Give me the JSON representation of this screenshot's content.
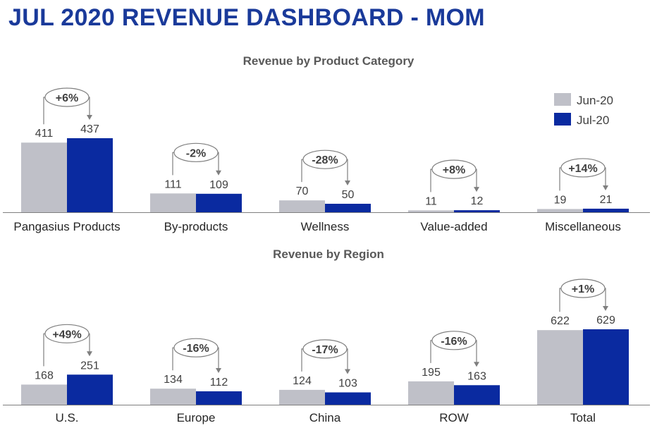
{
  "header": {
    "title": "JUL 2020 REVENUE DASHBOARD - MOM"
  },
  "legend": {
    "position": "top-right",
    "items": [
      {
        "label": "Jun-20",
        "color": "#bfc0c8"
      },
      {
        "label": "Jul-20",
        "color": "#0a2aa0"
      }
    ]
  },
  "colors": {
    "axis": "#7f7f7f",
    "bracket": "#7f7f7f"
  },
  "chart_data": [
    {
      "type": "bar",
      "title": "Revenue by Product Category",
      "categories": [
        "Pangasius Products",
        "By-products",
        "Wellness",
        "Value-added",
        "Miscellaneous"
      ],
      "series": [
        {
          "name": "Jun-20",
          "values": [
            411,
            111,
            70,
            11,
            19
          ]
        },
        {
          "name": "Jul-20",
          "values": [
            437,
            109,
            50,
            12,
            21
          ]
        }
      ],
      "changes": [
        "+6%",
        "-2%",
        "-28%",
        "+8%",
        "+14%"
      ],
      "ylim": [
        0,
        437
      ],
      "grid": false
    },
    {
      "type": "bar",
      "title": "Revenue by Region",
      "categories": [
        "U.S.",
        "Europe",
        "China",
        "ROW",
        "Total"
      ],
      "series": [
        {
          "name": "Jun-20",
          "values": [
            168,
            134,
            124,
            195,
            622
          ]
        },
        {
          "name": "Jul-20",
          "values": [
            251,
            112,
            103,
            163,
            629
          ]
        }
      ],
      "changes": [
        "+49%",
        "-16%",
        "-17%",
        "-16%",
        "+1%"
      ],
      "ylim": [
        0,
        629
      ],
      "grid": false
    }
  ]
}
